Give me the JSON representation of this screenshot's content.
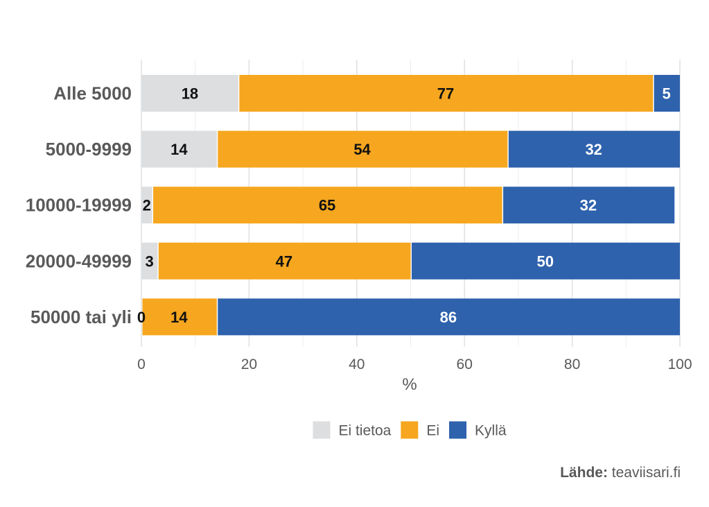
{
  "chart_data": {
    "type": "bar",
    "orientation": "horizontal",
    "stacked": true,
    "categories": [
      "Alle 5000",
      "5000-9999",
      "10000-19999",
      "20000-49999",
      "50000 tai yli"
    ],
    "series": [
      {
        "name": "Ei tietoa",
        "color": "#dcdee0",
        "label_color": "#111111",
        "values": [
          18,
          14,
          2,
          3,
          0
        ]
      },
      {
        "name": "Ei",
        "color": "#f6a71f",
        "label_color": "#111111",
        "values": [
          77,
          54,
          65,
          47,
          14
        ]
      },
      {
        "name": "Kyllä",
        "color": "#2e62ad",
        "label_color": "#ffffff",
        "values": [
          5,
          32,
          32,
          50,
          86
        ]
      }
    ],
    "xlabel": "%",
    "xlim": [
      0,
      100
    ],
    "xticks": [
      "0",
      "20",
      "40",
      "60",
      "80",
      "100"
    ],
    "grid": true,
    "legend_position": "bottom"
  },
  "source": {
    "label": "Lähde:",
    "text": "teaviisari.fi"
  }
}
